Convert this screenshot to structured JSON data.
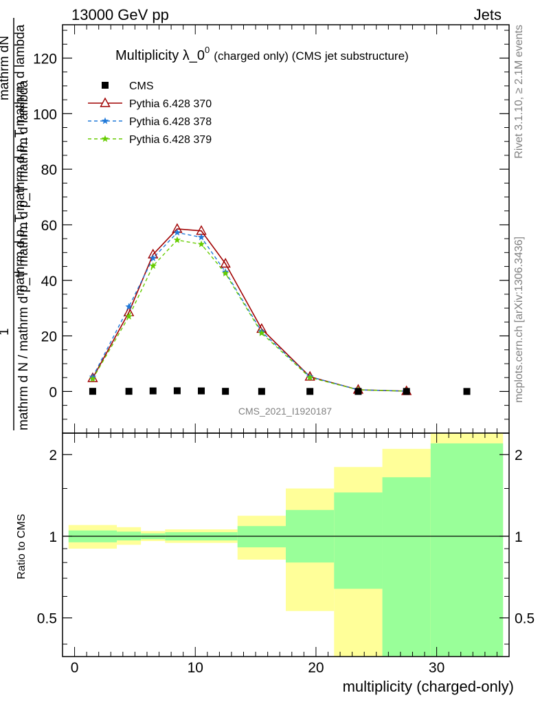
{
  "header": {
    "left": "13000 GeV pp",
    "right": "Jets"
  },
  "side_labels": {
    "rivet": "Rivet 3.1.10, ≥ 2.1M events",
    "mcplots": "mcplots.cern.ch [arXiv:1306.3436]"
  },
  "colors": {
    "cms": "#000000",
    "p370": "#a00000",
    "p378": "#1f78d8",
    "p379": "#66cc00",
    "band_inner": "#99ff99",
    "band_outer": "#ffff99"
  },
  "chart_data": [
    {
      "type": "line",
      "title": "Multiplicity λ_0⁰ (charged only) (CMS jet substructure)",
      "title_main": "Multiplicity λ_0",
      "title_sup": "0",
      "title_rest": "(charged only) (CMS jet substructure)",
      "watermark": "CMS_2021_I1920187",
      "ylabel_top": "mathrm dN",
      "ylabel_mid": "mathrm d p_T mathrm d p_T mathrm d lambda",
      "ylabel_one": "1",
      "ylabel_bottom": "mathrm d N / mathrm d p_T mathrm d p_T mathrm d lambda",
      "xlim": [
        -1,
        36
      ],
      "ylim": [
        -15,
        132
      ],
      "yticks": [
        0,
        20,
        40,
        60,
        80,
        100,
        120
      ],
      "ytick_labels": [
        "0",
        "20",
        "40",
        "60",
        "80",
        "100",
        "120"
      ],
      "legend_position": "top-left",
      "series": [
        {
          "name": "CMS",
          "marker": "square",
          "x": [
            1.5,
            4.5,
            6.5,
            8.5,
            10.5,
            12.5,
            15.5,
            19.5,
            23.5,
            27.5,
            32.5
          ],
          "y": [
            0.05,
            0.05,
            0.2,
            0.25,
            0.2,
            0.05,
            0.02,
            0.01,
            0.005,
            0.003,
            0.001
          ]
        },
        {
          "name": "Pythia 6.428 370",
          "marker": "triangle",
          "x": [
            1.5,
            4.5,
            6.5,
            8.5,
            10.5,
            12.5,
            15.5,
            19.5,
            23.5,
            27.5
          ],
          "y": [
            4.8,
            28.5,
            49.3,
            58.5,
            57.8,
            46.0,
            22.5,
            5.3,
            0.6,
            0.1
          ]
        },
        {
          "name": "Pythia 6.428 378",
          "marker": "star",
          "x": [
            1.5,
            4.5,
            6.5,
            8.5,
            10.5,
            12.5,
            15.5,
            19.5,
            23.5,
            27.5
          ],
          "y": [
            5.2,
            30.5,
            48.0,
            57.2,
            55.5,
            43.0,
            21.5,
            5.3,
            0.6,
            0.1
          ]
        },
        {
          "name": "Pythia 6.428 379",
          "marker": "star",
          "x": [
            1.5,
            4.5,
            6.5,
            8.5,
            10.5,
            12.5,
            15.5,
            19.5,
            23.5,
            27.5
          ],
          "y": [
            4.5,
            27.0,
            45.2,
            54.5,
            53.0,
            42.5,
            21.0,
            5.0,
            0.6,
            0.1
          ]
        }
      ]
    },
    {
      "type": "area",
      "ylabel": "Ratio to CMS",
      "xlabel": "multiplicity (charged-only)",
      "xlim": [
        -1,
        36
      ],
      "ylim": [
        0.36,
        2.4
      ],
      "yscale": "log",
      "yticks": [
        0.5,
        1,
        2
      ],
      "ytick_labels": [
        "0.5",
        "1",
        "2"
      ],
      "xticks": [
        0,
        10,
        20,
        30
      ],
      "xtick_labels": [
        "0",
        "10",
        "20",
        "30"
      ],
      "reference_line": 1,
      "bins": [
        {
          "lo": -0.5,
          "hi": 3.5,
          "inner_lo": 0.95,
          "inner_hi": 1.05,
          "outer_lo": 0.9,
          "outer_hi": 1.1
        },
        {
          "lo": 3.5,
          "hi": 5.5,
          "inner_lo": 0.965,
          "inner_hi": 1.04,
          "outer_lo": 0.93,
          "outer_hi": 1.08
        },
        {
          "lo": 5.5,
          "hi": 7.5,
          "inner_lo": 0.975,
          "inner_hi": 1.025,
          "outer_lo": 0.96,
          "outer_hi": 1.045
        },
        {
          "lo": 7.5,
          "hi": 13.5,
          "inner_lo": 0.965,
          "inner_hi": 1.035,
          "outer_lo": 0.945,
          "outer_hi": 1.06
        },
        {
          "lo": 13.5,
          "hi": 17.5,
          "inner_lo": 0.91,
          "inner_hi": 1.09,
          "outer_lo": 0.82,
          "outer_hi": 1.19
        },
        {
          "lo": 17.5,
          "hi": 21.5,
          "inner_lo": 0.8,
          "inner_hi": 1.25,
          "outer_lo": 0.53,
          "outer_hi": 1.5
        },
        {
          "lo": 21.5,
          "hi": 25.5,
          "inner_lo": 0.64,
          "inner_hi": 1.45,
          "outer_lo": 0.3,
          "outer_hi": 1.8
        },
        {
          "lo": 25.5,
          "hi": 29.5,
          "inner_lo": 0.3,
          "inner_hi": 1.65,
          "outer_lo": 0.3,
          "outer_hi": 2.1
        },
        {
          "lo": 29.5,
          "hi": 35.5,
          "inner_lo": 0.3,
          "inner_hi": 2.2,
          "outer_lo": 0.3,
          "outer_hi": 2.6
        }
      ]
    }
  ]
}
